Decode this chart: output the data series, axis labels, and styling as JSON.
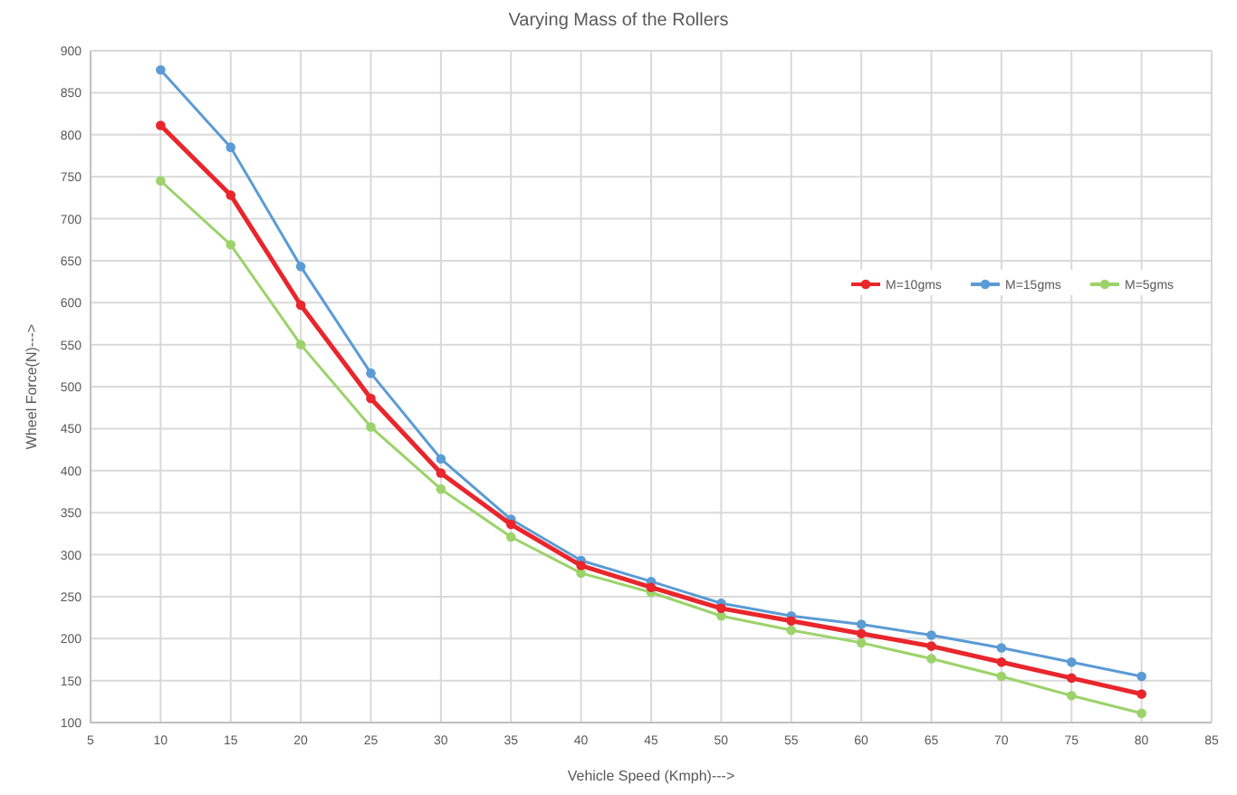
{
  "chart_data": {
    "type": "line",
    "title": "Varying Mass of the Rollers",
    "xlabel": "Vehicle Speed (Kmph)--->",
    "ylabel": "Wheel Force(N)--->",
    "x": [
      10,
      15,
      20,
      25,
      30,
      35,
      40,
      45,
      50,
      55,
      60,
      65,
      70,
      75,
      80
    ],
    "xlim": [
      5,
      85
    ],
    "xticks": [
      5,
      10,
      15,
      20,
      25,
      30,
      35,
      40,
      45,
      50,
      55,
      60,
      65,
      70,
      75,
      80,
      85
    ],
    "ylim": [
      100,
      900
    ],
    "yticks": [
      100,
      150,
      200,
      250,
      300,
      350,
      400,
      450,
      500,
      550,
      600,
      650,
      700,
      750,
      800,
      850,
      900
    ],
    "grid": true,
    "legend": "right",
    "marker": "circle",
    "line_style": "solid",
    "series": [
      {
        "name": "M=10gms",
        "color": "#e8262c",
        "values": [
          811,
          728,
          597,
          486,
          397,
          336,
          287,
          261,
          236,
          221,
          206,
          191,
          172,
          153,
          134
        ]
      },
      {
        "name": "M=15gms",
        "color": "#5b9bd5",
        "values": [
          877,
          785,
          643,
          516,
          414,
          342,
          293,
          268,
          242,
          227,
          217,
          204,
          189,
          172,
          155
        ]
      },
      {
        "name": "M=5gms",
        "color": "#9bd36a",
        "values": [
          745,
          669,
          550,
          452,
          378,
          321,
          278,
          255,
          227,
          210,
          195,
          176,
          155,
          132,
          111
        ]
      }
    ]
  }
}
